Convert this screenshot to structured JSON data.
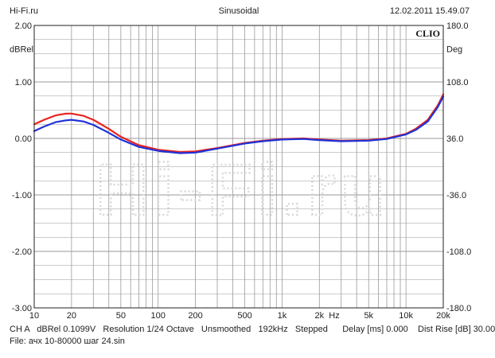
{
  "header": {
    "left": "Hi-Fi.ru",
    "center": "Sinusoidal",
    "right": "12.02.2011 15.49.07"
  },
  "footer": {
    "line1": "CH A   dBRel 0.1099V   Resolution 1/24 Octave   Unsmoothed   192kHz   Stepped      Delay [ms] 0.000    Dist Rise [dB] 30.00",
    "line2": "File: ачх 10-80000 шаг 24.sin"
  },
  "colors": {
    "series_red": "#e8231f",
    "series_blue": "#1f32d8",
    "grid": "#9a9a9a",
    "watermark": "#d9d9d9"
  },
  "chart_data": {
    "type": "line",
    "brand_label": "CLIO",
    "watermark": "Hi-Fi.ru",
    "x_scale": "log",
    "xlim": [
      10,
      20000
    ],
    "ylim": [
      -3,
      2
    ],
    "y2lim": [
      -180,
      180
    ],
    "ylabel": "dBRel",
    "y2label": "Deg",
    "xunit_label": "Hz",
    "x_ticks": [
      {
        "value": 10,
        "label": "10"
      },
      {
        "value": 20,
        "label": "20"
      },
      {
        "value": 50,
        "label": "50"
      },
      {
        "value": 100,
        "label": "100"
      },
      {
        "value": 200,
        "label": "200"
      },
      {
        "value": 500,
        "label": "500"
      },
      {
        "value": 1000,
        "label": "1k"
      },
      {
        "value": 2000,
        "label": "2k"
      },
      {
        "value": 5000,
        "label": "5k"
      },
      {
        "value": 10000,
        "label": "10k"
      },
      {
        "value": 20000,
        "label": "20k"
      }
    ],
    "y_ticks": [
      "2.00",
      "1.00",
      "0.00",
      "-1.00",
      "-2.00",
      "-3.00"
    ],
    "y2_ticks": [
      "180.0",
      "108.0",
      "36.0",
      "-36.0",
      "-108.0",
      "-180.0"
    ],
    "grid": true,
    "series": [
      {
        "x": [
          10,
          12,
          15,
          18,
          20,
          25,
          30,
          40,
          50,
          70,
          100,
          150,
          200,
          300,
          500,
          700,
          1000,
          1500,
          2000,
          3000,
          5000,
          7000,
          10000,
          12000,
          15000,
          18000,
          20000
        ],
        "y": [
          0.25,
          0.33,
          0.41,
          0.44,
          0.44,
          0.4,
          0.33,
          0.17,
          0.03,
          -0.12,
          -0.2,
          -0.24,
          -0.23,
          -0.17,
          -0.08,
          -0.04,
          -0.01,
          0.0,
          -0.02,
          -0.04,
          -0.03,
          0.0,
          0.08,
          0.17,
          0.33,
          0.58,
          0.78
        ]
      },
      {
        "x": [
          10,
          12,
          15,
          18,
          20,
          25,
          30,
          40,
          50,
          70,
          100,
          150,
          200,
          300,
          500,
          700,
          1000,
          1500,
          2000,
          3000,
          5000,
          7000,
          10000,
          12000,
          15000,
          18000,
          20000
        ],
        "y": [
          0.13,
          0.21,
          0.29,
          0.32,
          0.33,
          0.3,
          0.24,
          0.1,
          -0.02,
          -0.15,
          -0.22,
          -0.26,
          -0.25,
          -0.18,
          -0.09,
          -0.05,
          -0.02,
          -0.01,
          -0.03,
          -0.05,
          -0.04,
          -0.01,
          0.07,
          0.15,
          0.3,
          0.55,
          0.74
        ]
      }
    ]
  }
}
